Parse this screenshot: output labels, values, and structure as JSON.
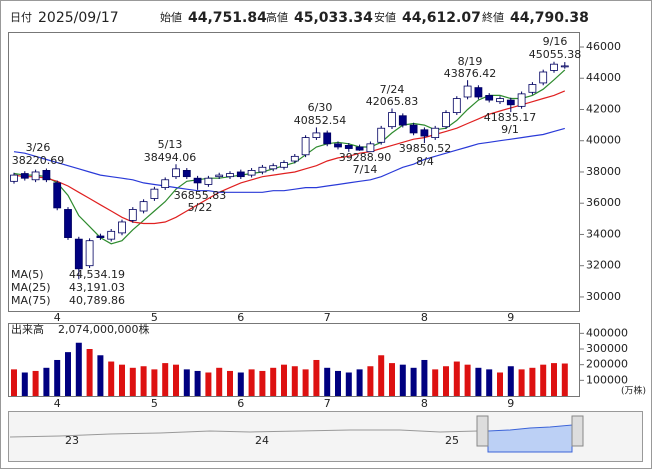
{
  "header": {
    "items": [
      "日付",
      "2025/09/17",
      "始値",
      "44,751.84",
      "高値",
      "45,033.34",
      "安値",
      "44,612.07",
      "終値",
      "44,790.38"
    ]
  },
  "chart_data": [
    {
      "type": "candlestick",
      "categories": [
        null,
        null,
        null,
        null,
        "4",
        null,
        null,
        null,
        null,
        null,
        null,
        null,
        null,
        "5",
        null,
        null,
        null,
        null,
        null,
        null,
        null,
        "6",
        null,
        null,
        null,
        null,
        null,
        null,
        null,
        "7",
        null,
        null,
        null,
        null,
        null,
        null,
        null,
        null,
        "8",
        null,
        null,
        null,
        null,
        null,
        null,
        null,
        "9",
        null,
        null,
        null,
        null,
        null
      ],
      "open": [
        37400,
        37900,
        37500,
        38100,
        37300,
        35600,
        33700,
        32000,
        33900,
        33700,
        34100,
        34900,
        35500,
        36300,
        37000,
        37700,
        38100,
        37600,
        37200,
        37700,
        37700,
        38000,
        37800,
        38000,
        38200,
        38300,
        38700,
        39100,
        40200,
        40500,
        39800,
        39700,
        39600,
        39300,
        39900,
        40900,
        41600,
        41000,
        40700,
        40200,
        40900,
        41800,
        42800,
        43400,
        42900,
        42500,
        42600,
        42200,
        43100,
        43700,
        44500,
        44751.84
      ],
      "high": [
        37950,
        38050,
        38150,
        38220.69,
        37450,
        35750,
        33850,
        33750,
        34050,
        34350,
        34950,
        35750,
        36250,
        37050,
        37650,
        38494.06,
        38250,
        37750,
        37750,
        37950,
        38050,
        38150,
        38250,
        38450,
        38550,
        38750,
        39150,
        40350,
        40852.54,
        40650,
        39950,
        39850,
        39750,
        39950,
        40950,
        42065.83,
        41750,
        41150,
        40850,
        40950,
        41950,
        42850,
        43876.42,
        43550,
        43050,
        42850,
        42750,
        43150,
        43750,
        44550,
        45055.38,
        45033.34
      ],
      "low": [
        37250,
        37450,
        37350,
        37350,
        35550,
        33650,
        31136,
        31850,
        33650,
        33550,
        33950,
        34750,
        35350,
        36150,
        36850,
        37550,
        37550,
        36855.83,
        37050,
        37550,
        37550,
        37550,
        37650,
        37850,
        38050,
        38150,
        38550,
        38950,
        40050,
        39650,
        39450,
        39288.9,
        39350,
        39300,
        39750,
        40750,
        40850,
        40350,
        39850.52,
        40050,
        40750,
        41650,
        42650,
        42650,
        42450,
        42350,
        41835.17,
        42050,
        42950,
        43550,
        44350,
        44612.07
      ],
      "close": [
        37800,
        37600,
        38000,
        37500,
        35700,
        33800,
        31800,
        33600,
        33800,
        34200,
        34800,
        35600,
        36100,
        36900,
        37500,
        38200,
        37700,
        37300,
        37600,
        37800,
        37900,
        37700,
        38100,
        38300,
        38400,
        38600,
        39000,
        40200,
        40500,
        39800,
        39600,
        39500,
        39400,
        39800,
        40800,
        41800,
        41000,
        40500,
        40300,
        40800,
        41800,
        42700,
        43500,
        42800,
        42600,
        42700,
        42300,
        43000,
        43600,
        44400,
        44900,
        44790.38
      ],
      "up_color": "#ffffff",
      "down_color": "#000080",
      "edge_color": "#000060",
      "ylim": [
        29100,
        46960
      ],
      "yticks": [
        30000,
        32000,
        34000,
        36000,
        38000,
        40000,
        42000,
        44000,
        46000
      ],
      "lines": [
        {
          "name": "MA(5)",
          "color": "#2e8b2e",
          "label": "44,534.19",
          "values": [
            37900,
            37800,
            37800,
            37700,
            37300,
            36500,
            35200,
            34500,
            33800,
            33400,
            33600,
            34300,
            34900,
            35500,
            36100,
            36900,
            37400,
            37500,
            37600,
            37600,
            37700,
            37800,
            37900,
            38000,
            38200,
            38400,
            38600,
            39100,
            39600,
            39800,
            39900,
            39800,
            39600,
            39600,
            39900,
            40500,
            41000,
            41100,
            41000,
            40700,
            40800,
            41300,
            42000,
            42600,
            42900,
            42900,
            42700,
            42700,
            42900,
            43300,
            43900,
            44534.19
          ]
        },
        {
          "name": "MA(25)",
          "color": "#e02020",
          "label": "43,191.03",
          "values": [
            37800,
            37700,
            37700,
            37600,
            37400,
            37100,
            36700,
            36300,
            35900,
            35500,
            35100,
            34800,
            34700,
            34700,
            34800,
            35100,
            35500,
            35900,
            36300,
            36700,
            37000,
            37300,
            37500,
            37700,
            37800,
            37900,
            38000,
            38200,
            38400,
            38700,
            38900,
            39000,
            39200,
            39300,
            39500,
            39700,
            39900,
            40100,
            40200,
            40400,
            40600,
            40800,
            41100,
            41400,
            41700,
            41900,
            42100,
            42300,
            42500,
            42700,
            42900,
            43191.03
          ]
        },
        {
          "name": "MA(75)",
          "color": "#2a3ad8",
          "label": "40,789.86",
          "values": [
            39300,
            39200,
            39000,
            38800,
            38600,
            38400,
            38200,
            38000,
            37800,
            37700,
            37600,
            37500,
            37300,
            37200,
            37100,
            37000,
            36900,
            36800,
            36800,
            36700,
            36700,
            36700,
            36700,
            36700,
            36800,
            36800,
            36900,
            37000,
            37000,
            37100,
            37200,
            37300,
            37400,
            37500,
            37700,
            38000,
            38300,
            38500,
            38800,
            39000,
            39200,
            39400,
            39600,
            39800,
            39900,
            40000,
            40100,
            40200,
            40300,
            40400,
            40600,
            40789.86
          ]
        }
      ],
      "annotations": [
        {
          "date": "3/26",
          "value": "38220.69"
        },
        {
          "date": "5/13",
          "value": "38494.06"
        },
        {
          "date": "5/22",
          "value": "36855.83"
        },
        {
          "date": "6/30",
          "value": "40852.54"
        },
        {
          "date": "7/14",
          "value": "39288.90"
        },
        {
          "date": "7/24",
          "value": "42065.83"
        },
        {
          "date": "8/4",
          "value": "39850.52"
        },
        {
          "date": "8/19",
          "value": "43876.42"
        },
        {
          "date": "9/1",
          "value": "41835.17"
        },
        {
          "date": "9/16",
          "value": "45055.38"
        }
      ]
    },
    {
      "type": "bar",
      "title": "出来高",
      "subtitle": "2,074,000,000株",
      "unit": "(万株)",
      "categories": [
        null,
        null,
        null,
        null,
        "4",
        null,
        null,
        null,
        null,
        null,
        null,
        null,
        null,
        "5",
        null,
        null,
        null,
        null,
        null,
        null,
        null,
        "6",
        null,
        null,
        null,
        null,
        null,
        null,
        null,
        "7",
        null,
        null,
        null,
        null,
        null,
        null,
        null,
        null,
        "8",
        null,
        null,
        null,
        null,
        null,
        null,
        null,
        "9",
        null,
        null,
        null,
        null,
        null
      ],
      "values": [
        170000,
        150000,
        160000,
        180000,
        230000,
        280000,
        340000,
        300000,
        260000,
        220000,
        200000,
        180000,
        190000,
        170000,
        210000,
        200000,
        170000,
        160000,
        150000,
        180000,
        160000,
        150000,
        170000,
        160000,
        180000,
        200000,
        190000,
        170000,
        230000,
        180000,
        160000,
        150000,
        170000,
        190000,
        260000,
        210000,
        200000,
        180000,
        230000,
        170000,
        190000,
        220000,
        200000,
        180000,
        170000,
        150000,
        190000,
        170000,
        180000,
        200000,
        210000,
        207400
      ],
      "up_color": "#dd1111",
      "down_color": "#000080",
      "ylim": [
        0,
        466000
      ],
      "yticks": [
        100000,
        200000,
        300000,
        400000
      ]
    }
  ],
  "navigator": {
    "labels": [
      "23",
      "24",
      "25"
    ]
  }
}
